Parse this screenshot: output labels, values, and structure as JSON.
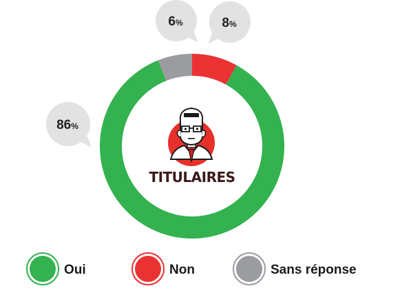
{
  "chart_data": {
    "type": "pie",
    "donut": true,
    "center_label": "TITULAIRES",
    "slices": [
      {
        "label": "Oui",
        "value": 86,
        "display": "86",
        "color": "#33b24f"
      },
      {
        "label": "Non",
        "value": 8,
        "display": "8",
        "color": "#ea3232"
      },
      {
        "label": "Sans réponse",
        "value": 6,
        "display": "6",
        "color": "#9b9ca0"
      }
    ],
    "unit_symbol": "%",
    "legend_position": "bottom"
  },
  "icons": {
    "center": "professor-icon"
  }
}
